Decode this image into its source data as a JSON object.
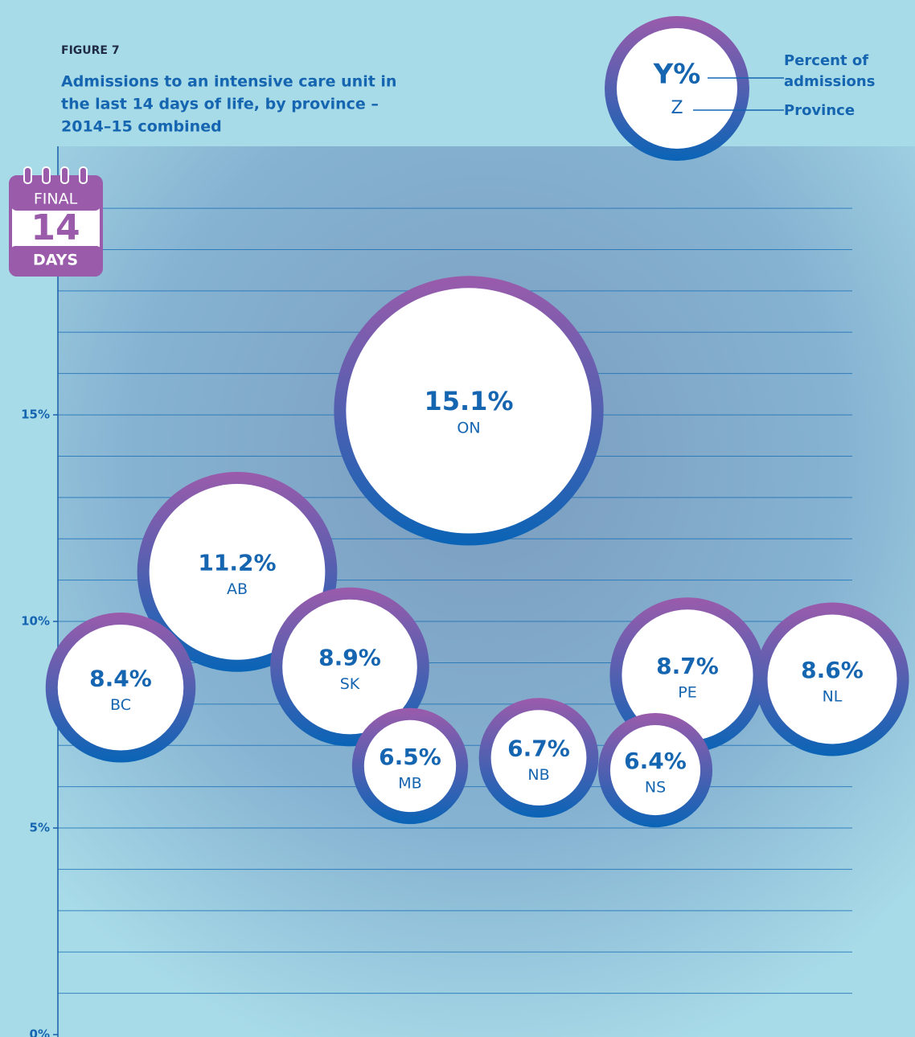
{
  "chart_data": {
    "type": "bubble",
    "figure_label": "FIGURE 7",
    "title_lines": [
      "Admissions to an intensive care unit in",
      "the last 14 days of life, by province –",
      "2014–15 combined"
    ],
    "categories": [
      "ON",
      "AB",
      "BC",
      "SK",
      "MB",
      "NB",
      "PE",
      "NS",
      "NL"
    ],
    "values": [
      15.1,
      11.2,
      8.4,
      8.9,
      6.5,
      6.7,
      8.7,
      6.4,
      8.6
    ],
    "value_labels": [
      "15.1%",
      "11.2%",
      "8.4%",
      "8.9%",
      "6.5%",
      "6.7%",
      "8.7%",
      "6.4%",
      "8.6%"
    ],
    "ylim": [
      0,
      21.5
    ],
    "yticks": [
      {
        "value": 0,
        "label": "0%"
      },
      {
        "value": 5,
        "label": "5%"
      },
      {
        "value": 10,
        "label": "10%"
      },
      {
        "value": 15,
        "label": "15%"
      }
    ],
    "grid_lines": [
      1,
      2,
      3,
      4,
      5,
      6,
      7,
      8,
      9,
      10,
      11,
      12,
      13,
      14,
      15,
      16,
      17,
      18,
      19,
      20
    ],
    "ring_colors": [
      "#9b5bab",
      "#0a64b6"
    ],
    "legend_key": {
      "value_text": "Y%",
      "name_text": "Z",
      "value_caption": [
        "Percent of",
        "admissions"
      ],
      "name_caption": "Province"
    },
    "icon": {
      "top": "FINAL",
      "number": "14",
      "bottom": "DAYS"
    }
  }
}
